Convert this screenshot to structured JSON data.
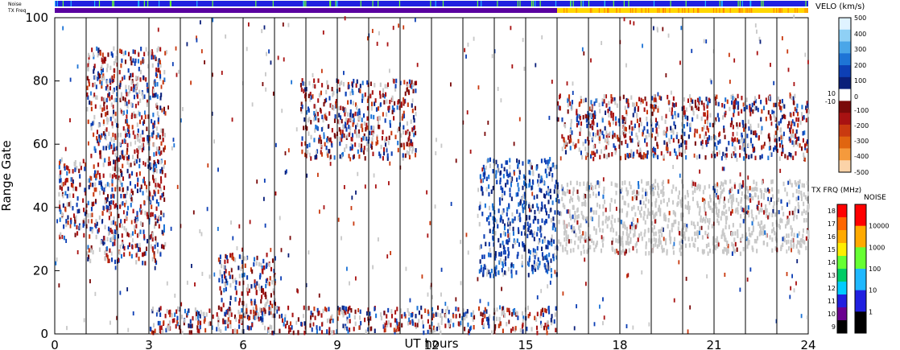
{
  "chart_data": {
    "type": "scatter",
    "xlabel": "UT hours",
    "ylabel": "Range Gate",
    "xlim": [
      0,
      24
    ],
    "ylim": [
      0,
      100
    ],
    "x_ticks": [
      0,
      3,
      6,
      9,
      12,
      15,
      18,
      21,
      24
    ],
    "y_ticks": [
      0,
      20,
      40,
      60,
      80,
      100
    ],
    "x_tick_labels": [
      "0",
      "3",
      "6",
      "9",
      "12",
      "15",
      "18",
      "21",
      "24"
    ],
    "y_tick_labels": [
      "0",
      "20",
      "40",
      "60",
      "80",
      "100"
    ],
    "vertical_marker_hours": [
      1,
      2,
      3,
      4,
      5,
      6,
      7,
      8,
      9,
      10,
      11,
      12,
      13,
      14,
      15,
      16,
      17,
      18,
      19,
      20,
      21,
      22,
      23
    ],
    "status_bars": {
      "noise_label": "Noise",
      "txfreq_label": "TX Freq",
      "noise_color": "#2020e0",
      "txfreq_segments": [
        {
          "from": 0,
          "to": 16,
          "color": "#5a00a0"
        },
        {
          "from": 16,
          "to": 24,
          "color": "#ffd700"
        }
      ]
    },
    "scatter_regions": [
      {
        "x": [
          0.1,
          1.0
        ],
        "y": [
          30,
          55
        ],
        "color": "mixed"
      },
      {
        "x": [
          1.0,
          3.5
        ],
        "y": [
          22,
          90
        ],
        "color": "mixed"
      },
      {
        "x": [
          5.2,
          7.0
        ],
        "y": [
          5,
          25
        ],
        "color": "mixed"
      },
      {
        "x": [
          7.8,
          11.5
        ],
        "y": [
          55,
          80
        ],
        "color": "mixed"
      },
      {
        "x": [
          13.5,
          16.0
        ],
        "y": [
          18,
          55
        ],
        "color": "blue"
      },
      {
        "x": [
          16.0,
          24.0
        ],
        "y": [
          25,
          48
        ],
        "color": "gray"
      },
      {
        "x": [
          16.0,
          24.0
        ],
        "y": [
          55,
          75
        ],
        "color": "mixed"
      },
      {
        "x": [
          3.0,
          16.0
        ],
        "y": [
          0,
          8
        ],
        "color": "mixed"
      }
    ],
    "velocity_colorbar": {
      "title": "VELO (km/s)",
      "tick_labels": [
        "500",
        "400",
        "300",
        "200",
        "100",
        "10",
        "0",
        "-10",
        "-100",
        "-200",
        "-300",
        "-400",
        "-500"
      ],
      "colors_top_to_bottom": [
        "#dff3ff",
        "#8fd0f5",
        "#4aa6e8",
        "#1e74d6",
        "#0d3fb5",
        "#0a1f7a",
        "#ffffff",
        "#7a0a0a",
        "#a81212",
        "#c93a10",
        "#e06510",
        "#f59a3c",
        "#fbd3a8"
      ]
    },
    "txfreq_colorbar": {
      "title": "TX FRQ (MHz)",
      "tick_labels": [
        "18",
        "17",
        "16",
        "15",
        "14",
        "13",
        "12",
        "11",
        "10",
        "9"
      ],
      "colors_top_to_bottom": [
        "#ff0000",
        "#ff6600",
        "#ffaa00",
        "#ffee00",
        "#66ff33",
        "#00cc66",
        "#00ccff",
        "#2020e0",
        "#6a0090",
        "#000000"
      ]
    },
    "noise_colorbar": {
      "title": "NOISE",
      "tick_labels": [
        "10000",
        "1000",
        "100",
        "10",
        "1"
      ],
      "colors_top_to_bottom": [
        "#ff0000",
        "#ffaa00",
        "#66ff33",
        "#1fb8ff",
        "#2020e0",
        "#000000"
      ]
    }
  }
}
